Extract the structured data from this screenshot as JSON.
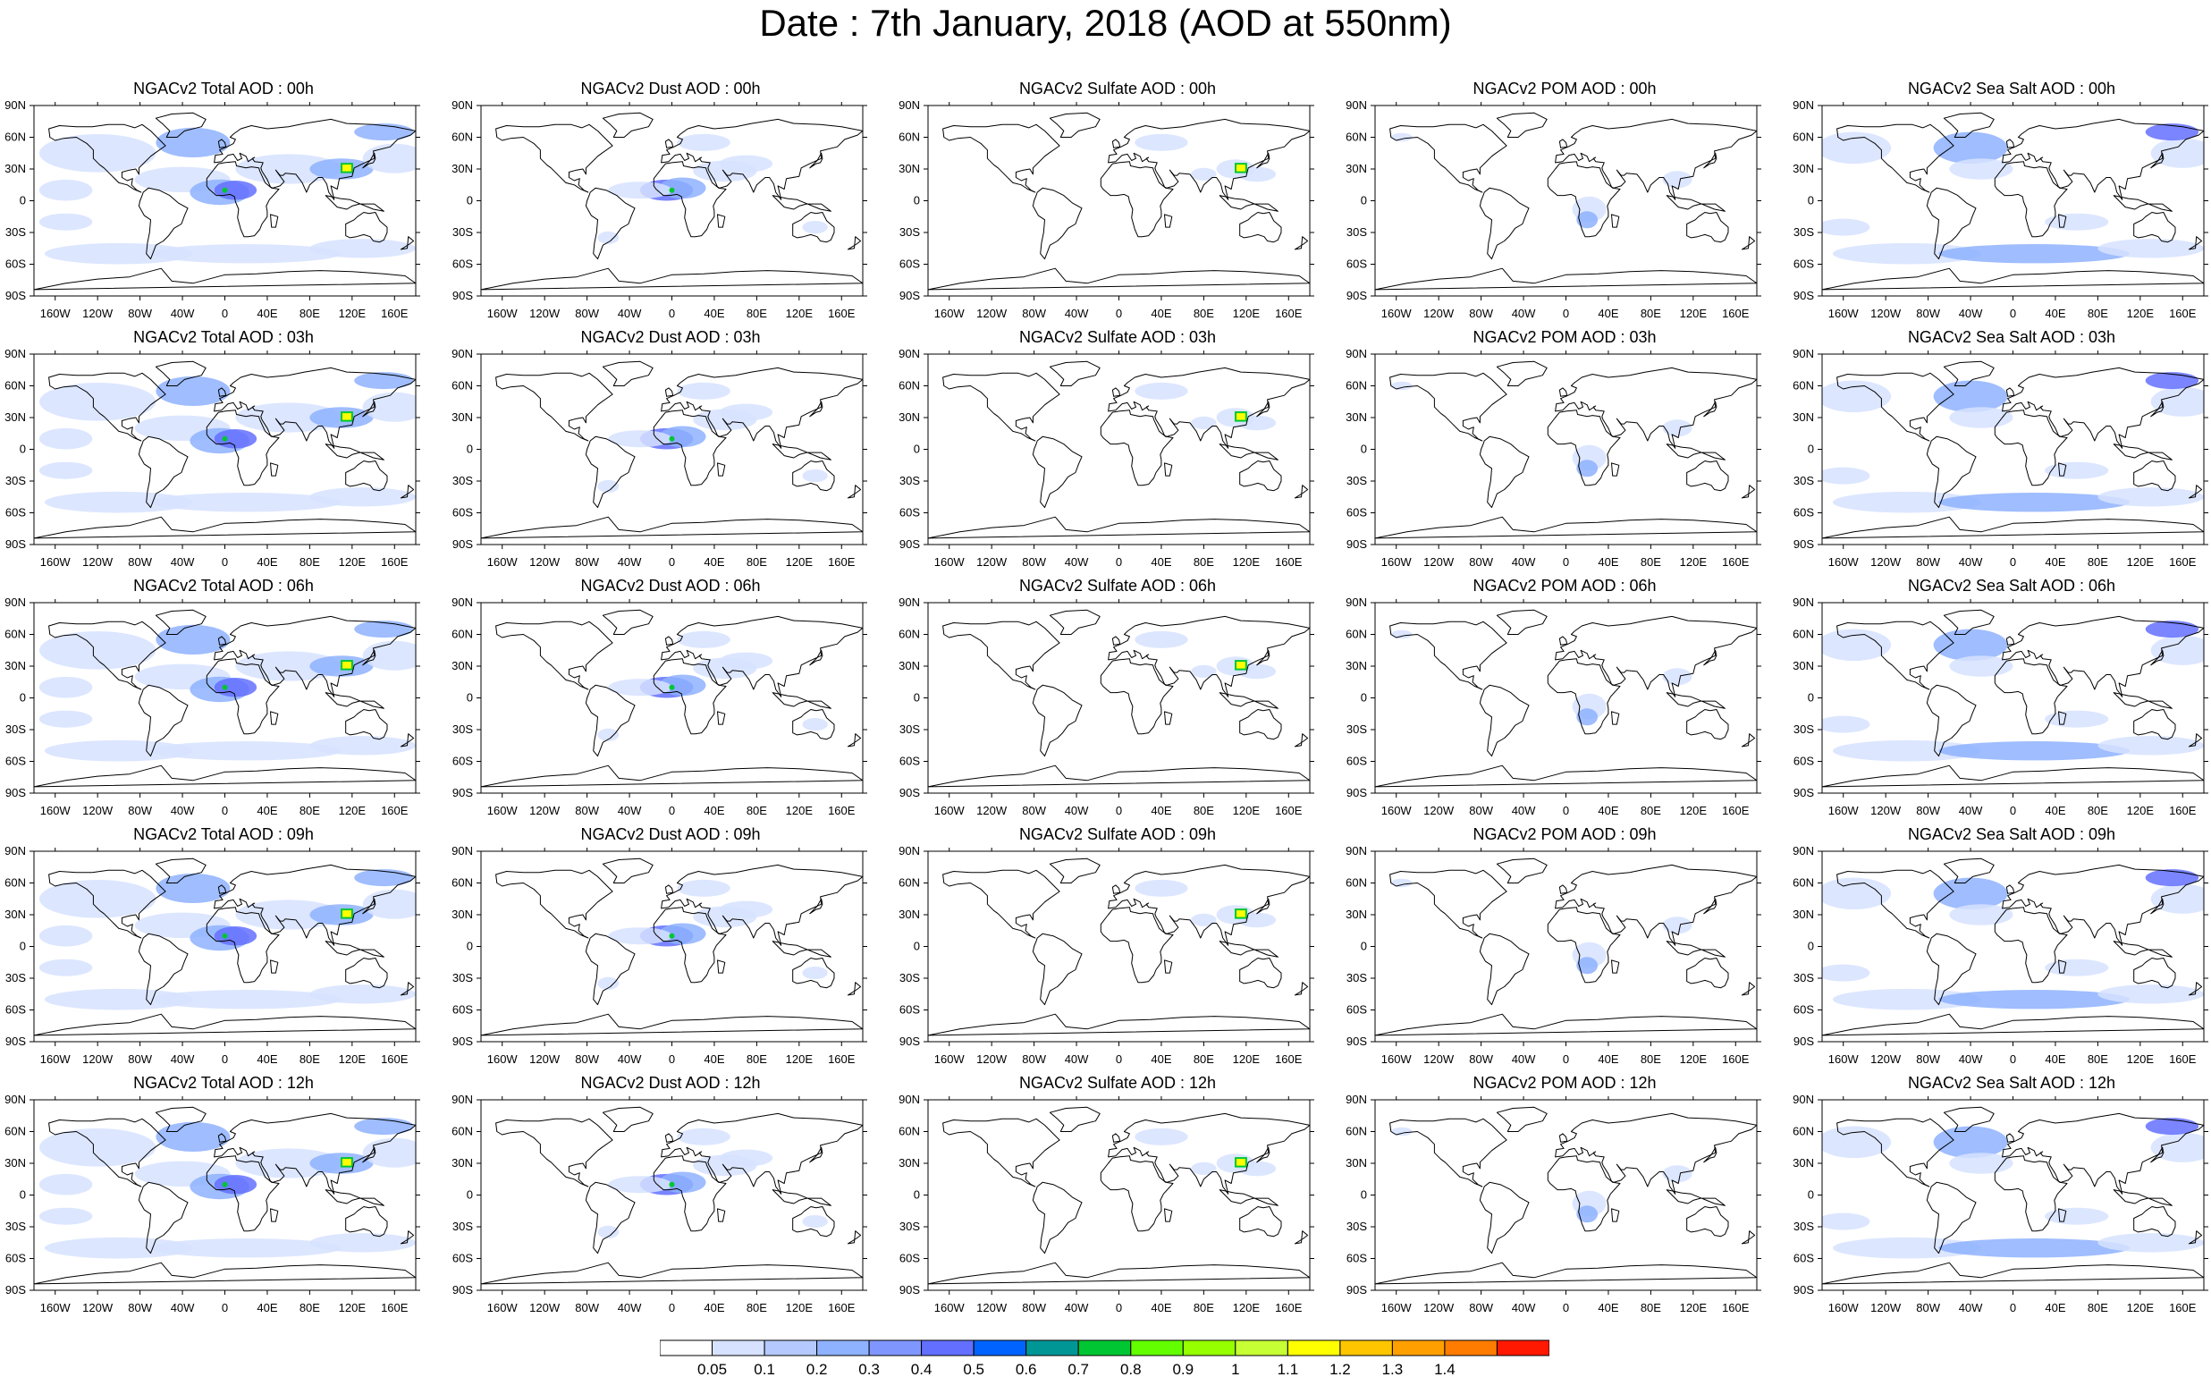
{
  "title": "Date : 7th January, 2018 (AOD at 550nm)",
  "lat_labels": [
    "90N",
    "60N",
    "30N",
    "0",
    "30S",
    "60S",
    "90S"
  ],
  "lon_labels": [
    "160W",
    "120W",
    "80W",
    "40W",
    "0",
    "40E",
    "80E",
    "120E",
    "160E"
  ],
  "rows": [
    {
      "time": "00h",
      "titles": [
        "NGACv2 Total AOD : 00h",
        "NGACv2 Dust AOD : 00h",
        "NGACv2 Sulfate AOD : 00h",
        "NGACv2 POM AOD : 00h",
        "NGACv2 Sea Salt AOD : 00h"
      ]
    },
    {
      "time": "03h",
      "titles": [
        "NGACv2 Total AOD : 03h",
        "NGACv2 Dust AOD : 03h",
        "NGACv2 Sulfate AOD : 03h",
        "NGACv2 POM AOD : 03h",
        "NGACv2 Sea Salt AOD : 03h"
      ]
    },
    {
      "time": "06h",
      "titles": [
        "NGACv2 Total AOD : 06h",
        "NGACv2 Dust AOD : 06h",
        "NGACv2 Sulfate AOD : 06h",
        "NGACv2 POM AOD : 06h",
        "NGACv2 Sea Salt AOD : 06h"
      ]
    },
    {
      "time": "09h",
      "titles": [
        "NGACv2 Total AOD : 09h",
        "NGACv2 Dust AOD : 09h",
        "NGACv2 Sulfate AOD : 09h",
        "NGACv2 POM AOD : 09h",
        "NGACv2 Sea Salt  AOD : 09h"
      ]
    },
    {
      "time": "12h",
      "titles": [
        "NGACv2 Total AOD : 12h",
        "NGACv2 Dust AOD : 12h",
        "NGACv2 Sulfate AOD : 12h",
        "NGACv2 POM  AOD : 12h",
        "NGACv2 Sea Salt  AOD : 12h"
      ]
    }
  ],
  "species": [
    "total",
    "dust",
    "sulfate",
    "pom",
    "seasalt"
  ],
  "colorbar": {
    "labels": [
      "0.05",
      "0.1",
      "0.2",
      "0.3",
      "0.4",
      "0.5",
      "0.6",
      "0.7",
      "0.8",
      "0.9",
      "1",
      "1.1",
      "1.2",
      "1.3",
      "1.4"
    ],
    "colors": [
      "#ffffff",
      "#d6e2ff",
      "#b5c9ff",
      "#8eb2ff",
      "#7f96ff",
      "#6370ff",
      "#0063ff",
      "#009696",
      "#00c633",
      "#63ff00",
      "#96ff00",
      "#c6ff33",
      "#ffff00",
      "#ffc600",
      "#ffa000",
      "#ff7c00",
      "#ff1900"
    ]
  },
  "map_colors": {
    "land_outline": "#000000",
    "low_aod": "#d6e2ff",
    "mid_aod": "#8eb2ff",
    "high_aod": "#6370ff",
    "hotspot": "#ffff00",
    "hotspot_edge": "#00c633"
  }
}
